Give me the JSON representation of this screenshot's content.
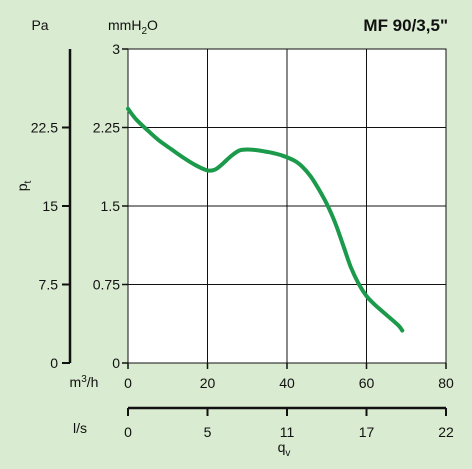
{
  "chart_data": {
    "type": "line",
    "title": "MF 90/3,5\"",
    "background": "#d9ebd0",
    "curve_color": "#1a9a4a",
    "grid": true,
    "y_axes": {
      "left_unit": "Pa",
      "right_unit_main": "mmH",
      "right_unit_sub": "2",
      "right_unit_tail": "O",
      "name_main": "p",
      "name_sub": "t",
      "pa_ticks": [
        "22.5",
        "15",
        "7.5",
        "0"
      ],
      "mm_ticks": [
        "3",
        "2.25",
        "1.5",
        "0.75",
        "0"
      ],
      "ylim_mmH2O": [
        0,
        3
      ]
    },
    "x_axes": {
      "m3h_unit_main": "m",
      "m3h_unit_sup": "3",
      "m3h_unit_tail": "/h",
      "m3h_ticks": [
        "0",
        "20",
        "40",
        "60",
        "80"
      ],
      "ls_unit": "l/s",
      "ls_ticks": [
        "0",
        "5",
        "11",
        "17",
        "22"
      ],
      "name_main": "q",
      "name_sub": "v",
      "xlim_m3h": [
        0,
        80
      ]
    },
    "series": [
      {
        "x": [
          0,
          2,
          5,
          8,
          11,
          14,
          17,
          20,
          22,
          24,
          26,
          28,
          30,
          33,
          36,
          39,
          42,
          44,
          46,
          48,
          50,
          52,
          54,
          56,
          58,
          60,
          62,
          65,
          68,
          69
        ],
        "y": [
          2.43,
          2.33,
          2.22,
          2.12,
          2.04,
          1.96,
          1.89,
          1.84,
          1.85,
          1.91,
          1.98,
          2.03,
          2.04,
          2.03,
          2.01,
          1.98,
          1.93,
          1.87,
          1.78,
          1.66,
          1.52,
          1.35,
          1.14,
          0.92,
          0.76,
          0.64,
          0.56,
          0.46,
          0.36,
          0.31
        ]
      }
    ]
  }
}
